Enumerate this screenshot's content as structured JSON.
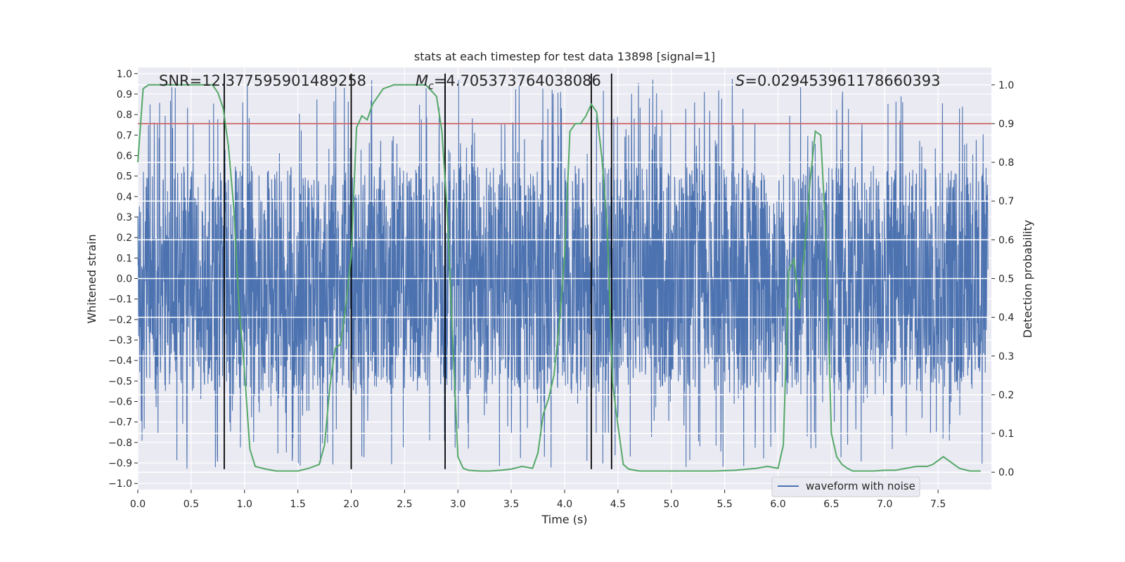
{
  "chart_data": {
    "type": "line",
    "title": "stats at each timestep for test data 13898 [signal=1]",
    "xlabel": "Time (s)",
    "ylabel": "Whitened strain",
    "y2label": "Detection probability",
    "xlim": [
      0.0,
      8.0
    ],
    "ylim": [
      -1.03,
      1.03
    ],
    "y2lim": [
      -0.045,
      1.045
    ],
    "xticks": [
      "0.0",
      "0.5",
      "1.0",
      "1.5",
      "2.0",
      "2.5",
      "3.0",
      "3.5",
      "4.0",
      "4.5",
      "5.0",
      "5.5",
      "6.0",
      "6.5",
      "7.0",
      "7.5"
    ],
    "yticks": [
      "1.0",
      "0.9",
      "0.8",
      "0.7",
      "0.6",
      "0.5",
      "0.4",
      "0.3",
      "0.2",
      "0.1",
      "0.0",
      "−0.1",
      "−0.2",
      "−0.3",
      "−0.4",
      "−0.5",
      "−0.6",
      "−0.7",
      "−0.8",
      "−0.9",
      "−1.0"
    ],
    "y2ticks": [
      "1.0",
      "0.9",
      "0.8",
      "0.7",
      "0.6",
      "0.5",
      "0.4",
      "0.3",
      "0.2",
      "0.1",
      "0.0"
    ],
    "annotations": {
      "snr": "SNR=12.377595901489258",
      "mc_symbol": "M",
      "mc_sub": "c",
      "mc_value": "=4.705373764038086",
      "s_symbol": "S",
      "s_value": "=0.029453961178660393"
    },
    "threshold": {
      "y2": 0.9,
      "color": "#c44e52"
    },
    "event_lines_x": [
      0.81,
      2.0,
      2.88,
      4.25,
      4.44
    ],
    "legend": {
      "label": "waveform with noise",
      "position": "lower-right"
    },
    "series": [
      {
        "name": "waveform with noise",
        "color": "#4c72b0",
        "kind": "noise",
        "amplitude_range": [
          -0.93,
          1.0
        ]
      },
      {
        "name": "detection probability",
        "color": "#55a868",
        "axis": "y2",
        "x": [
          0.0,
          0.05,
          0.1,
          0.15,
          0.2,
          0.3,
          0.4,
          0.5,
          0.6,
          0.65,
          0.7,
          0.75,
          0.8,
          0.85,
          0.9,
          0.95,
          1.0,
          1.05,
          1.1,
          1.2,
          1.3,
          1.4,
          1.5,
          1.6,
          1.7,
          1.75,
          1.8,
          1.85,
          1.9,
          1.95,
          2.0,
          2.05,
          2.1,
          2.15,
          2.2,
          2.25,
          2.3,
          2.4,
          2.5,
          2.6,
          2.7,
          2.8,
          2.85,
          2.9,
          2.95,
          3.0,
          3.05,
          3.1,
          3.2,
          3.3,
          3.4,
          3.5,
          3.6,
          3.7,
          3.75,
          3.8,
          3.85,
          3.9,
          3.95,
          4.0,
          4.05,
          4.1,
          4.15,
          4.2,
          4.25,
          4.3,
          4.35,
          4.4,
          4.45,
          4.5,
          4.55,
          4.6,
          4.7,
          4.8,
          4.9,
          5.0,
          5.2,
          5.4,
          5.6,
          5.8,
          5.9,
          6.0,
          6.05,
          6.1,
          6.15,
          6.2,
          6.25,
          6.3,
          6.35,
          6.4,
          6.45,
          6.5,
          6.55,
          6.6,
          6.65,
          6.7,
          6.8,
          6.9,
          7.0,
          7.1,
          7.2,
          7.3,
          7.4,
          7.45,
          7.5,
          7.55,
          7.6,
          7.7,
          7.8,
          7.9
        ],
        "values": [
          0.8,
          0.99,
          1.0,
          1.0,
          1.0,
          1.0,
          1.0,
          1.0,
          1.0,
          1.0,
          1.0,
          0.98,
          0.94,
          0.84,
          0.68,
          0.42,
          0.26,
          0.06,
          0.015,
          0.008,
          0.003,
          0.003,
          0.003,
          0.01,
          0.02,
          0.07,
          0.22,
          0.32,
          0.33,
          0.43,
          0.56,
          0.89,
          0.92,
          0.91,
          0.95,
          0.97,
          0.99,
          1.0,
          1.0,
          1.0,
          1.0,
          0.97,
          0.88,
          0.67,
          0.35,
          0.04,
          0.01,
          0.005,
          0.003,
          0.003,
          0.005,
          0.008,
          0.015,
          0.01,
          0.05,
          0.15,
          0.19,
          0.25,
          0.38,
          0.56,
          0.88,
          0.9,
          0.9,
          0.92,
          0.95,
          0.93,
          0.81,
          0.63,
          0.23,
          0.12,
          0.02,
          0.008,
          0.003,
          0.003,
          0.003,
          0.003,
          0.003,
          0.003,
          0.005,
          0.01,
          0.015,
          0.01,
          0.07,
          0.52,
          0.55,
          0.42,
          0.58,
          0.75,
          0.88,
          0.87,
          0.6,
          0.1,
          0.04,
          0.02,
          0.01,
          0.003,
          0.003,
          0.003,
          0.005,
          0.005,
          0.01,
          0.015,
          0.015,
          0.02,
          0.03,
          0.04,
          0.03,
          0.01,
          0.003,
          0.003
        ]
      }
    ]
  }
}
